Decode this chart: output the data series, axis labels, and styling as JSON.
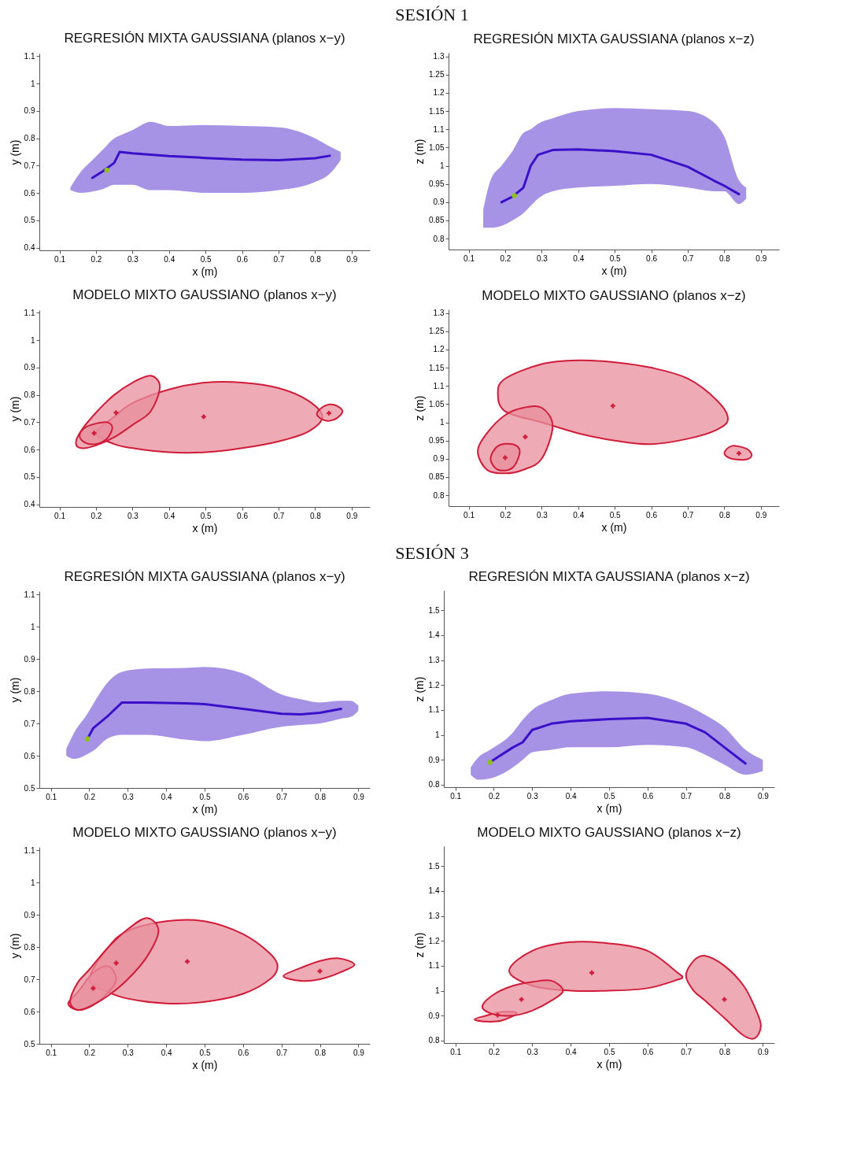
{
  "chart_data": [
    {
      "type": "line",
      "title": "REGRESIÓN MIXTA GAUSSIANA (planos x−y)",
      "xlabel": "x (m)",
      "ylabel": "y (m)",
      "annotations": [
        "SESIÓN 1"
      ],
      "xlim": [
        0.045,
        0.95
      ],
      "ylim": [
        0.39,
        1.11
      ],
      "xticks": [
        0.1,
        0.2,
        0.3,
        0.4,
        0.5,
        0.6,
        0.7,
        0.8,
        0.9
      ],
      "yticks": [
        0.4,
        0.5,
        0.6,
        0.7,
        0.8,
        0.9,
        1,
        1.1
      ],
      "series": [
        {
          "color": "#3a10c8",
          "x": [
            0.13,
            0.16,
            0.19,
            0.22,
            0.25,
            0.265,
            0.3,
            0.35,
            0.4,
            0.5,
            0.6,
            0.7,
            0.8,
            0.84,
            0.87
          ],
          "values": [
            null,
            null,
            0.655,
            0.68,
            0.71,
            0.75,
            0.745,
            0.74,
            0.735,
            0.728,
            0.722,
            0.72,
            0.727,
            0.736,
            null
          ],
          "lower": [
            0.61,
            0.6,
            0.605,
            0.615,
            0.63,
            0.63,
            0.63,
            0.61,
            0.61,
            0.6,
            0.6,
            0.61,
            0.64,
            0.67,
            0.72
          ],
          "upper": [
            0.62,
            0.68,
            0.72,
            0.76,
            0.8,
            0.81,
            0.83,
            0.86,
            0.845,
            0.848,
            0.845,
            0.84,
            0.8,
            0.77,
            0.75
          ]
        },
        {
          "type": "scatter",
          "marker": "circle",
          "color": "#8fbf1f",
          "x": [
            0.23
          ],
          "values": [
            0.683
          ]
        }
      ]
    },
    {
      "type": "line",
      "title": "REGRESIÓN MIXTA GAUSSIANA (planos x−z)",
      "xlabel": "x (m)",
      "ylabel": "z (m)",
      "xlim": [
        0.045,
        0.95
      ],
      "ylim": [
        0.77,
        1.31
      ],
      "xticks": [
        0.1,
        0.2,
        0.3,
        0.4,
        0.5,
        0.6,
        0.7,
        0.8,
        0.9
      ],
      "yticks": [
        0.8,
        0.85,
        0.9,
        0.95,
        1,
        1.05,
        1.1,
        1.15,
        1.2,
        1.25,
        1.3
      ],
      "series": [
        {
          "color": "#3a10c8",
          "x": [
            0.14,
            0.16,
            0.19,
            0.22,
            0.25,
            0.27,
            0.29,
            0.33,
            0.4,
            0.5,
            0.6,
            0.7,
            0.77,
            0.8,
            0.84,
            0.86
          ],
          "values": [
            null,
            null,
            0.9,
            0.915,
            0.94,
            1.0,
            1.03,
            1.043,
            1.045,
            1.04,
            1.03,
            0.997,
            0.96,
            0.945,
            0.922,
            null
          ],
          "lower": [
            0.83,
            0.83,
            0.835,
            0.85,
            0.87,
            0.89,
            0.91,
            0.93,
            0.94,
            0.945,
            0.95,
            0.94,
            0.93,
            0.93,
            0.895,
            0.91
          ],
          "upper": [
            0.88,
            0.96,
            1.0,
            1.04,
            1.09,
            1.1,
            1.115,
            1.13,
            1.15,
            1.158,
            1.155,
            1.15,
            1.12,
            1.08,
            0.96,
            0.94
          ]
        },
        {
          "type": "scatter",
          "marker": "circle",
          "color": "#8fbf1f",
          "x": [
            0.225
          ],
          "values": [
            0.918
          ]
        }
      ]
    },
    {
      "type": "area",
      "title": "MODELO MIXTO GAUSSIANO (planos x−y)",
      "xlabel": "x (m)",
      "ylabel": "y (m)",
      "xlim": [
        0.045,
        0.95
      ],
      "ylim": [
        0.39,
        1.11
      ],
      "xticks": [
        0.1,
        0.2,
        0.3,
        0.4,
        0.5,
        0.6,
        0.7,
        0.8,
        0.9
      ],
      "yticks": [
        0.4,
        0.5,
        0.6,
        0.7,
        0.8,
        0.9,
        1,
        1.1
      ],
      "series": [
        {
          "color": "#d01c38",
          "x": [
            0.2,
            0.25,
            0.3,
            0.4,
            0.5,
            0.6,
            0.7,
            0.78,
            0.82,
            0.78,
            0.7,
            0.6,
            0.5,
            0.4,
            0.3,
            0.25
          ],
          "values": [
            0.66,
            0.72,
            0.77,
            0.82,
            0.845,
            0.845,
            0.825,
            0.78,
            0.72,
            0.665,
            0.63,
            0.605,
            0.59,
            0.59,
            0.605,
            0.62
          ]
        },
        {
          "color": "#d01c38",
          "x": [
            0.145,
            0.16,
            0.2,
            0.25,
            0.3,
            0.35,
            0.375,
            0.35,
            0.3,
            0.25,
            0.2,
            0.16
          ],
          "values": [
            0.625,
            0.67,
            0.735,
            0.8,
            0.845,
            0.87,
            0.83,
            0.74,
            0.69,
            0.645,
            0.615,
            0.605
          ]
        },
        {
          "color": "#d01c38",
          "x": [
            0.155,
            0.17,
            0.2,
            0.23,
            0.245,
            0.23,
            0.2,
            0.17
          ],
          "values": [
            0.65,
            0.68,
            0.695,
            0.7,
            0.68,
            0.64,
            0.62,
            0.625
          ]
        },
        {
          "color": "#d01c38",
          "x": [
            0.805,
            0.82,
            0.84,
            0.86,
            0.875,
            0.86,
            0.84,
            0.82
          ],
          "values": [
            0.73,
            0.755,
            0.765,
            0.76,
            0.74,
            0.715,
            0.705,
            0.71
          ]
        },
        {
          "type": "scatter",
          "marker": "cross",
          "color": "#d01c38",
          "x": [
            0.255,
            0.195,
            0.495,
            0.838
          ],
          "values": [
            0.735,
            0.66,
            0.72,
            0.733
          ]
        }
      ]
    },
    {
      "type": "area",
      "title": "MODELO MIXTO GAUSSIANO (planos x−z)",
      "xlabel": "x (m)",
      "ylabel": "z (m)",
      "xlim": [
        0.045,
        0.95
      ],
      "ylim": [
        0.77,
        1.31
      ],
      "xticks": [
        0.1,
        0.2,
        0.3,
        0.4,
        0.5,
        0.6,
        0.7,
        0.8,
        0.9
      ],
      "yticks": [
        0.8,
        0.85,
        0.9,
        0.95,
        1,
        1.05,
        1.1,
        1.15,
        1.2,
        1.25,
        1.3
      ],
      "series": [
        {
          "color": "#d01c38",
          "x": [
            0.18,
            0.2,
            0.3,
            0.4,
            0.5,
            0.6,
            0.7,
            0.78,
            0.81,
            0.78,
            0.7,
            0.6,
            0.5,
            0.4,
            0.3,
            0.2
          ],
          "values": [
            1.08,
            1.12,
            1.16,
            1.17,
            1.165,
            1.15,
            1.12,
            1.06,
            1.01,
            0.98,
            0.955,
            0.94,
            0.95,
            0.97,
            1.0,
            1.03
          ]
        },
        {
          "color": "#d01c38",
          "x": [
            0.125,
            0.15,
            0.2,
            0.25,
            0.3,
            0.33,
            0.3,
            0.25,
            0.2,
            0.15
          ],
          "values": [
            0.92,
            0.97,
            1.02,
            1.04,
            1.04,
            0.99,
            0.9,
            0.87,
            0.86,
            0.87
          ]
        },
        {
          "color": "#d01c38",
          "x": [
            0.16,
            0.18,
            0.22,
            0.24,
            0.22,
            0.18
          ],
          "values": [
            0.9,
            0.935,
            0.94,
            0.92,
            0.875,
            0.87
          ]
        },
        {
          "color": "#d01c38",
          "x": [
            0.8,
            0.82,
            0.86,
            0.875,
            0.86,
            0.82
          ],
          "values": [
            0.915,
            0.935,
            0.928,
            0.91,
            0.898,
            0.9
          ]
        },
        {
          "type": "scatter",
          "marker": "cross",
          "color": "#d01c38",
          "x": [
            0.495,
            0.255,
            0.2,
            0.84
          ],
          "values": [
            1.045,
            0.96,
            0.903,
            0.915
          ]
        }
      ]
    },
    {
      "type": "line",
      "title": "REGRESIÓN MIXTA GAUSSIANA (planos x−y)",
      "xlabel": "x (m)",
      "ylabel": "y (m)",
      "annotations": [
        "SESIÓN 3"
      ],
      "xlim": [
        0.07,
        0.93
      ],
      "ylim": [
        0.5,
        1.11
      ],
      "xticks": [
        0.1,
        0.2,
        0.3,
        0.4,
        0.5,
        0.6,
        0.7,
        0.8,
        0.9
      ],
      "yticks": [
        0.5,
        0.6,
        0.7,
        0.8,
        0.9,
        1,
        1.1
      ],
      "series": [
        {
          "color": "#3a10c8",
          "x": [
            0.14,
            0.16,
            0.195,
            0.21,
            0.25,
            0.285,
            0.35,
            0.45,
            0.5,
            0.6,
            0.7,
            0.75,
            0.8,
            0.855,
            0.88,
            0.9
          ],
          "values": [
            null,
            null,
            0.652,
            0.685,
            0.725,
            0.765,
            0.765,
            0.762,
            0.76,
            0.745,
            0.73,
            0.728,
            0.733,
            0.745,
            null,
            null
          ],
          "lower": [
            0.6,
            0.59,
            0.605,
            0.615,
            0.655,
            0.665,
            0.665,
            0.65,
            0.645,
            0.665,
            0.69,
            0.695,
            0.7,
            0.715,
            0.72,
            0.74
          ],
          "upper": [
            0.62,
            0.67,
            0.73,
            0.76,
            0.83,
            0.86,
            0.87,
            0.872,
            0.875,
            0.855,
            0.79,
            0.775,
            0.765,
            0.77,
            0.77,
            0.755
          ]
        },
        {
          "type": "scatter",
          "marker": "circle",
          "color": "#8fbf1f",
          "x": [
            0.195
          ],
          "values": [
            0.652
          ]
        }
      ]
    },
    {
      "type": "line",
      "title": "REGRESIÓN MIXTA GAUSSIANA (planos x−z)",
      "xlabel": "x (m)",
      "ylabel": "z (m)",
      "xlim": [
        0.07,
        0.93
      ],
      "ylim": [
        0.79,
        1.58
      ],
      "xticks": [
        0.1,
        0.2,
        0.3,
        0.4,
        0.5,
        0.6,
        0.7,
        0.8,
        0.9
      ],
      "yticks": [
        0.8,
        0.9,
        1,
        1.1,
        1.2,
        1.3,
        1.4,
        1.5
      ],
      "series": [
        {
          "color": "#3a10c8",
          "x": [
            0.14,
            0.16,
            0.19,
            0.25,
            0.275,
            0.3,
            0.35,
            0.4,
            0.5,
            0.6,
            0.7,
            0.75,
            0.8,
            0.855,
            0.9
          ],
          "values": [
            null,
            null,
            0.89,
            0.95,
            0.97,
            1.02,
            1.045,
            1.055,
            1.063,
            1.068,
            1.045,
            1.01,
            0.95,
            0.885,
            null
          ],
          "lower": [
            0.84,
            0.82,
            0.825,
            0.87,
            0.9,
            0.93,
            0.94,
            0.95,
            0.95,
            0.96,
            0.95,
            0.92,
            0.88,
            0.84,
            0.855
          ],
          "upper": [
            0.87,
            0.91,
            0.94,
            1.01,
            1.06,
            1.1,
            1.14,
            1.165,
            1.175,
            1.165,
            1.12,
            1.08,
            1.03,
            0.94,
            0.9
          ]
        },
        {
          "type": "scatter",
          "marker": "circle",
          "color": "#8fbf1f",
          "x": [
            0.19
          ],
          "values": [
            0.89
          ]
        }
      ]
    },
    {
      "type": "area",
      "title": "MODELO MIXTO GAUSSIANO (planos x−y)",
      "xlabel": "x (m)",
      "ylabel": "y (m)",
      "xlim": [
        0.07,
        0.93
      ],
      "ylim": [
        0.5,
        1.11
      ],
      "xticks": [
        0.1,
        0.2,
        0.3,
        0.4,
        0.5,
        0.6,
        0.7,
        0.8,
        0.9
      ],
      "yticks": [
        0.5,
        0.6,
        0.7,
        0.8,
        0.9,
        1,
        1.1
      ],
      "series": [
        {
          "color": "#d01c38",
          "x": [
            0.2,
            0.25,
            0.3,
            0.4,
            0.5,
            0.6,
            0.67,
            0.69,
            0.67,
            0.6,
            0.5,
            0.4,
            0.3,
            0.25
          ],
          "values": [
            0.7,
            0.8,
            0.85,
            0.88,
            0.88,
            0.84,
            0.78,
            0.74,
            0.7,
            0.655,
            0.63,
            0.625,
            0.64,
            0.66
          ]
        },
        {
          "color": "#d01c38",
          "x": [
            0.145,
            0.17,
            0.21,
            0.25,
            0.27,
            0.25,
            0.21,
            0.17
          ],
          "values": [
            0.625,
            0.66,
            0.72,
            0.74,
            0.7,
            0.66,
            0.62,
            0.605
          ]
        },
        {
          "color": "#d01c38",
          "x": [
            0.15,
            0.17,
            0.2,
            0.25,
            0.3,
            0.35,
            0.38,
            0.35,
            0.3,
            0.25,
            0.2,
            0.17
          ],
          "values": [
            0.63,
            0.69,
            0.73,
            0.8,
            0.855,
            0.89,
            0.85,
            0.77,
            0.7,
            0.65,
            0.615,
            0.605
          ]
        },
        {
          "color": "#d01c38",
          "x": [
            0.705,
            0.75,
            0.8,
            0.85,
            0.89,
            0.85,
            0.8,
            0.75
          ],
          "values": [
            0.71,
            0.735,
            0.757,
            0.765,
            0.745,
            0.72,
            0.7,
            0.695
          ]
        },
        {
          "type": "scatter",
          "marker": "cross",
          "color": "#d01c38",
          "x": [
            0.21,
            0.27,
            0.455,
            0.8
          ],
          "values": [
            0.672,
            0.75,
            0.755,
            0.725
          ]
        }
      ]
    },
    {
      "type": "area",
      "title": "MODELO MIXTO GAUSSIANO (planos x−z)",
      "xlabel": "x (m)",
      "ylabel": "z (m)",
      "xlim": [
        0.07,
        0.93
      ],
      "ylim": [
        0.79,
        1.58
      ],
      "xticks": [
        0.1,
        0.2,
        0.3,
        0.4,
        0.5,
        0.6,
        0.7,
        0.8,
        0.9
      ],
      "yticks": [
        0.8,
        0.9,
        1,
        1.1,
        1.2,
        1.3,
        1.4,
        1.5
      ],
      "series": [
        {
          "color": "#d01c38",
          "x": [
            0.24,
            0.3,
            0.4,
            0.5,
            0.6,
            0.68,
            0.69,
            0.68,
            0.6,
            0.5,
            0.4,
            0.3
          ],
          "values": [
            1.08,
            1.16,
            1.195,
            1.19,
            1.16,
            1.07,
            1.055,
            1.045,
            1.01,
            1.0,
            1.0,
            1.02
          ]
        },
        {
          "color": "#d01c38",
          "x": [
            0.15,
            0.18,
            0.22,
            0.26,
            0.22,
            0.18
          ],
          "values": [
            0.885,
            0.9,
            0.915,
            0.91,
            0.88,
            0.876
          ]
        },
        {
          "color": "#d01c38",
          "x": [
            0.17,
            0.2,
            0.25,
            0.3,
            0.35,
            0.38,
            0.35,
            0.3,
            0.25,
            0.2
          ],
          "values": [
            0.935,
            0.985,
            1.02,
            1.035,
            1.04,
            1.0,
            0.96,
            0.92,
            0.9,
            0.905
          ]
        },
        {
          "color": "#d01c38",
          "x": [
            0.7,
            0.72,
            0.75,
            0.8,
            0.85,
            0.88,
            0.895,
            0.88,
            0.85,
            0.8,
            0.75,
            0.72
          ],
          "values": [
            1.06,
            1.12,
            1.14,
            1.1,
            1.02,
            0.93,
            0.86,
            0.81,
            0.82,
            0.89,
            0.96,
            1.0
          ]
        },
        {
          "type": "scatter",
          "marker": "cross",
          "color": "#d01c38",
          "x": [
            0.21,
            0.272,
            0.455,
            0.8
          ],
          "values": [
            0.902,
            0.965,
            1.072,
            0.965
          ]
        }
      ]
    }
  ]
}
